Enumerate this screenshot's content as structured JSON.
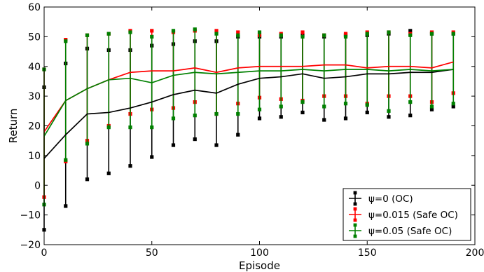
{
  "chart_data": {
    "type": "line",
    "xlabel": "Episode",
    "ylabel": "Return",
    "xlim": [
      0,
      200
    ],
    "ylim": [
      -20,
      60
    ],
    "xticks": [
      "0",
      "50",
      "100",
      "150",
      "200"
    ],
    "yticks": [
      "−20",
      "−10",
      "0",
      "10",
      "20",
      "30",
      "40",
      "50",
      "60"
    ],
    "grid": false,
    "legend_position": "bottom-right",
    "x": [
      0,
      10,
      20,
      30,
      40,
      50,
      60,
      70,
      80,
      90,
      100,
      110,
      120,
      130,
      140,
      150,
      160,
      170,
      180,
      190
    ],
    "series": [
      {
        "name": "ψ=0 (OC)",
        "color": "#000000",
        "values": [
          9,
          17,
          24,
          24.5,
          26,
          28,
          30.5,
          32,
          31,
          34,
          36,
          36.5,
          37.5,
          36,
          36.5,
          37.5,
          37.5,
          38,
          38,
          39
        ],
        "err_low": [
          -15,
          -7,
          2,
          4,
          6.5,
          9.5,
          13.5,
          15.5,
          13.5,
          17,
          22.5,
          23,
          24.5,
          22,
          22.5,
          24.5,
          23,
          23.5,
          25.5,
          26.5
        ],
        "err_high": [
          33,
          41,
          46,
          45.5,
          45.5,
          47,
          47.5,
          48.5,
          48.5,
          50,
          50,
          50,
          50.5,
          50,
          50.5,
          50.5,
          51,
          52,
          51,
          51
        ]
      },
      {
        "name": "ψ=0.015 (Safe OC)",
        "color": "#ff0000",
        "values": [
          18,
          28.5,
          32.5,
          35.5,
          38,
          38.5,
          38.5,
          39.5,
          38,
          39.5,
          40,
          40,
          40,
          40.5,
          40.5,
          39.5,
          40,
          40,
          39.5,
          41.5
        ],
        "err_low": [
          -4,
          8,
          15,
          20,
          24,
          25.5,
          26,
          28,
          24,
          27.5,
          29.5,
          29,
          28.5,
          30,
          30,
          27.5,
          30,
          30,
          28,
          31
        ],
        "err_high": [
          39,
          49,
          50.5,
          51,
          52,
          52,
          51.5,
          52,
          52,
          51.5,
          50.5,
          51,
          51.5,
          50.5,
          51,
          51.5,
          51.5,
          51,
          51.5,
          51.5
        ]
      },
      {
        "name": "ψ=0.05 (Safe OC)",
        "color": "#008000",
        "values": [
          16.5,
          28.5,
          32.5,
          35.5,
          36,
          34.5,
          37,
          38,
          37.5,
          38,
          38.5,
          38.5,
          39,
          38.5,
          39,
          39,
          38.5,
          39,
          38.5,
          39
        ],
        "err_low": [
          -6.5,
          8.5,
          14,
          19.5,
          19.5,
          19.5,
          22.5,
          23.5,
          24,
          24,
          25.5,
          26.5,
          28,
          26.5,
          27.5,
          27,
          25,
          28,
          26.5,
          27.5
        ],
        "err_high": [
          39,
          48.5,
          50.5,
          51,
          51.5,
          50,
          52,
          52.5,
          51,
          50.5,
          51.5,
          50.5,
          50,
          50.5,
          50,
          51,
          51.5,
          50.5,
          51,
          51
        ]
      }
    ]
  }
}
